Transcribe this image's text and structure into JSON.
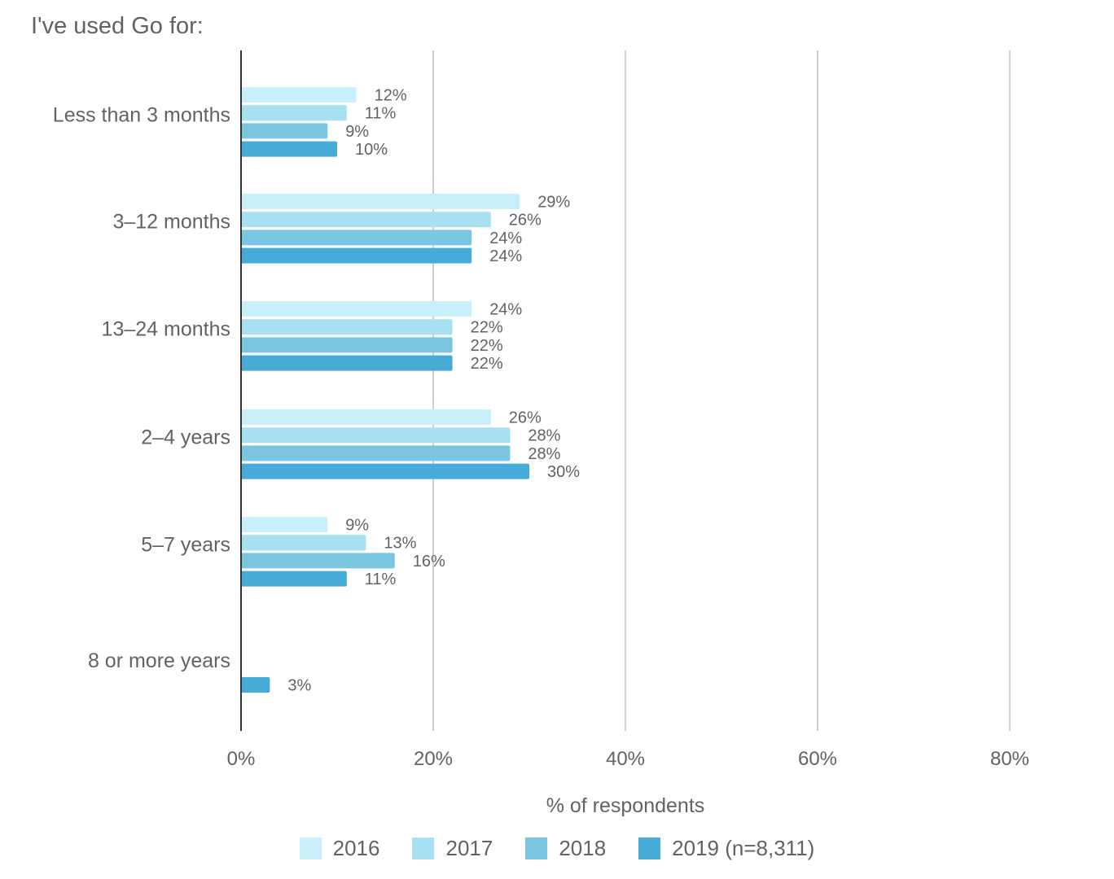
{
  "chart_data": {
    "type": "bar",
    "orientation": "horizontal",
    "title": "I've used Go for:",
    "xlabel": "% of respondents",
    "ylabel": "",
    "xlim": [
      0,
      80
    ],
    "xticks": [
      0,
      20,
      40,
      60,
      80
    ],
    "xtick_labels": [
      "0%",
      "20%",
      "40%",
      "60%",
      "80%"
    ],
    "grid": true,
    "legend_position": "bottom",
    "categories": [
      "Less than 3 months",
      "3–12 months",
      "13–24 months",
      "2–4 years",
      "5–7 years",
      "8 or more years"
    ],
    "series": [
      {
        "name": "2016",
        "color": "#c8f0fb",
        "values": [
          12,
          29,
          24,
          26,
          9,
          null
        ],
        "labels": [
          "12%",
          "29%",
          "24%",
          "26%",
          "9%",
          ""
        ]
      },
      {
        "name": "2017",
        "color": "#a6e0f1",
        "values": [
          11,
          26,
          22,
          28,
          13,
          null
        ],
        "labels": [
          "11%",
          "26%",
          "22%",
          "28%",
          "13%",
          ""
        ]
      },
      {
        "name": "2018",
        "color": "#7ac6e1",
        "values": [
          9,
          24,
          22,
          28,
          16,
          null
        ],
        "labels": [
          "9%",
          "24%",
          "22%",
          "28%",
          "16%",
          ""
        ]
      },
      {
        "name": "2019 (n=8,311)",
        "color": "#47abd7",
        "values": [
          10,
          24,
          22,
          30,
          11,
          3
        ],
        "labels": [
          "10%",
          "24%",
          "22%",
          "30%",
          "11%",
          "3%"
        ]
      }
    ]
  }
}
